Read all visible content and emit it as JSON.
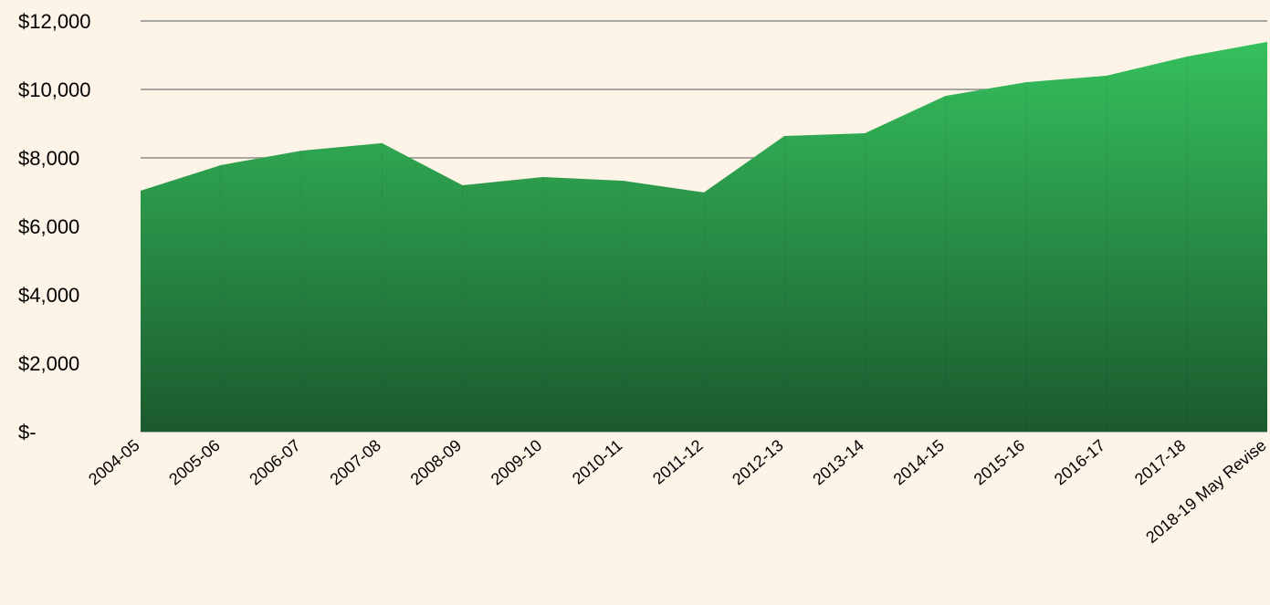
{
  "chart_data": {
    "type": "area",
    "categories": [
      "2004-05",
      "2005-06",
      "2006-07",
      "2007-08",
      "2008-09",
      "2009-10",
      "2010-11",
      "2011-12",
      "2012-13",
      "2013-14",
      "2014-15",
      "2015-16",
      "2016-17",
      "2017-18",
      "2018-19 May Revise"
    ],
    "values": [
      7040,
      7790,
      8210,
      8430,
      7200,
      7440,
      7330,
      6990,
      8640,
      8720,
      9810,
      10210,
      10400,
      10960,
      11390
    ],
    "color": "#35c05d",
    "ylim": [
      0,
      12000
    ],
    "yticks": [
      {
        "value": 0,
        "label": "$-"
      },
      {
        "value": 2000,
        "label": "$2,000"
      },
      {
        "value": 4000,
        "label": "$4,000"
      },
      {
        "value": 6000,
        "label": "$6,000"
      },
      {
        "value": 8000,
        "label": "$8,000"
      },
      {
        "value": 10000,
        "label": "$10,000"
      },
      {
        "value": 12000,
        "label": "$12,000"
      }
    ],
    "grid": true
  }
}
